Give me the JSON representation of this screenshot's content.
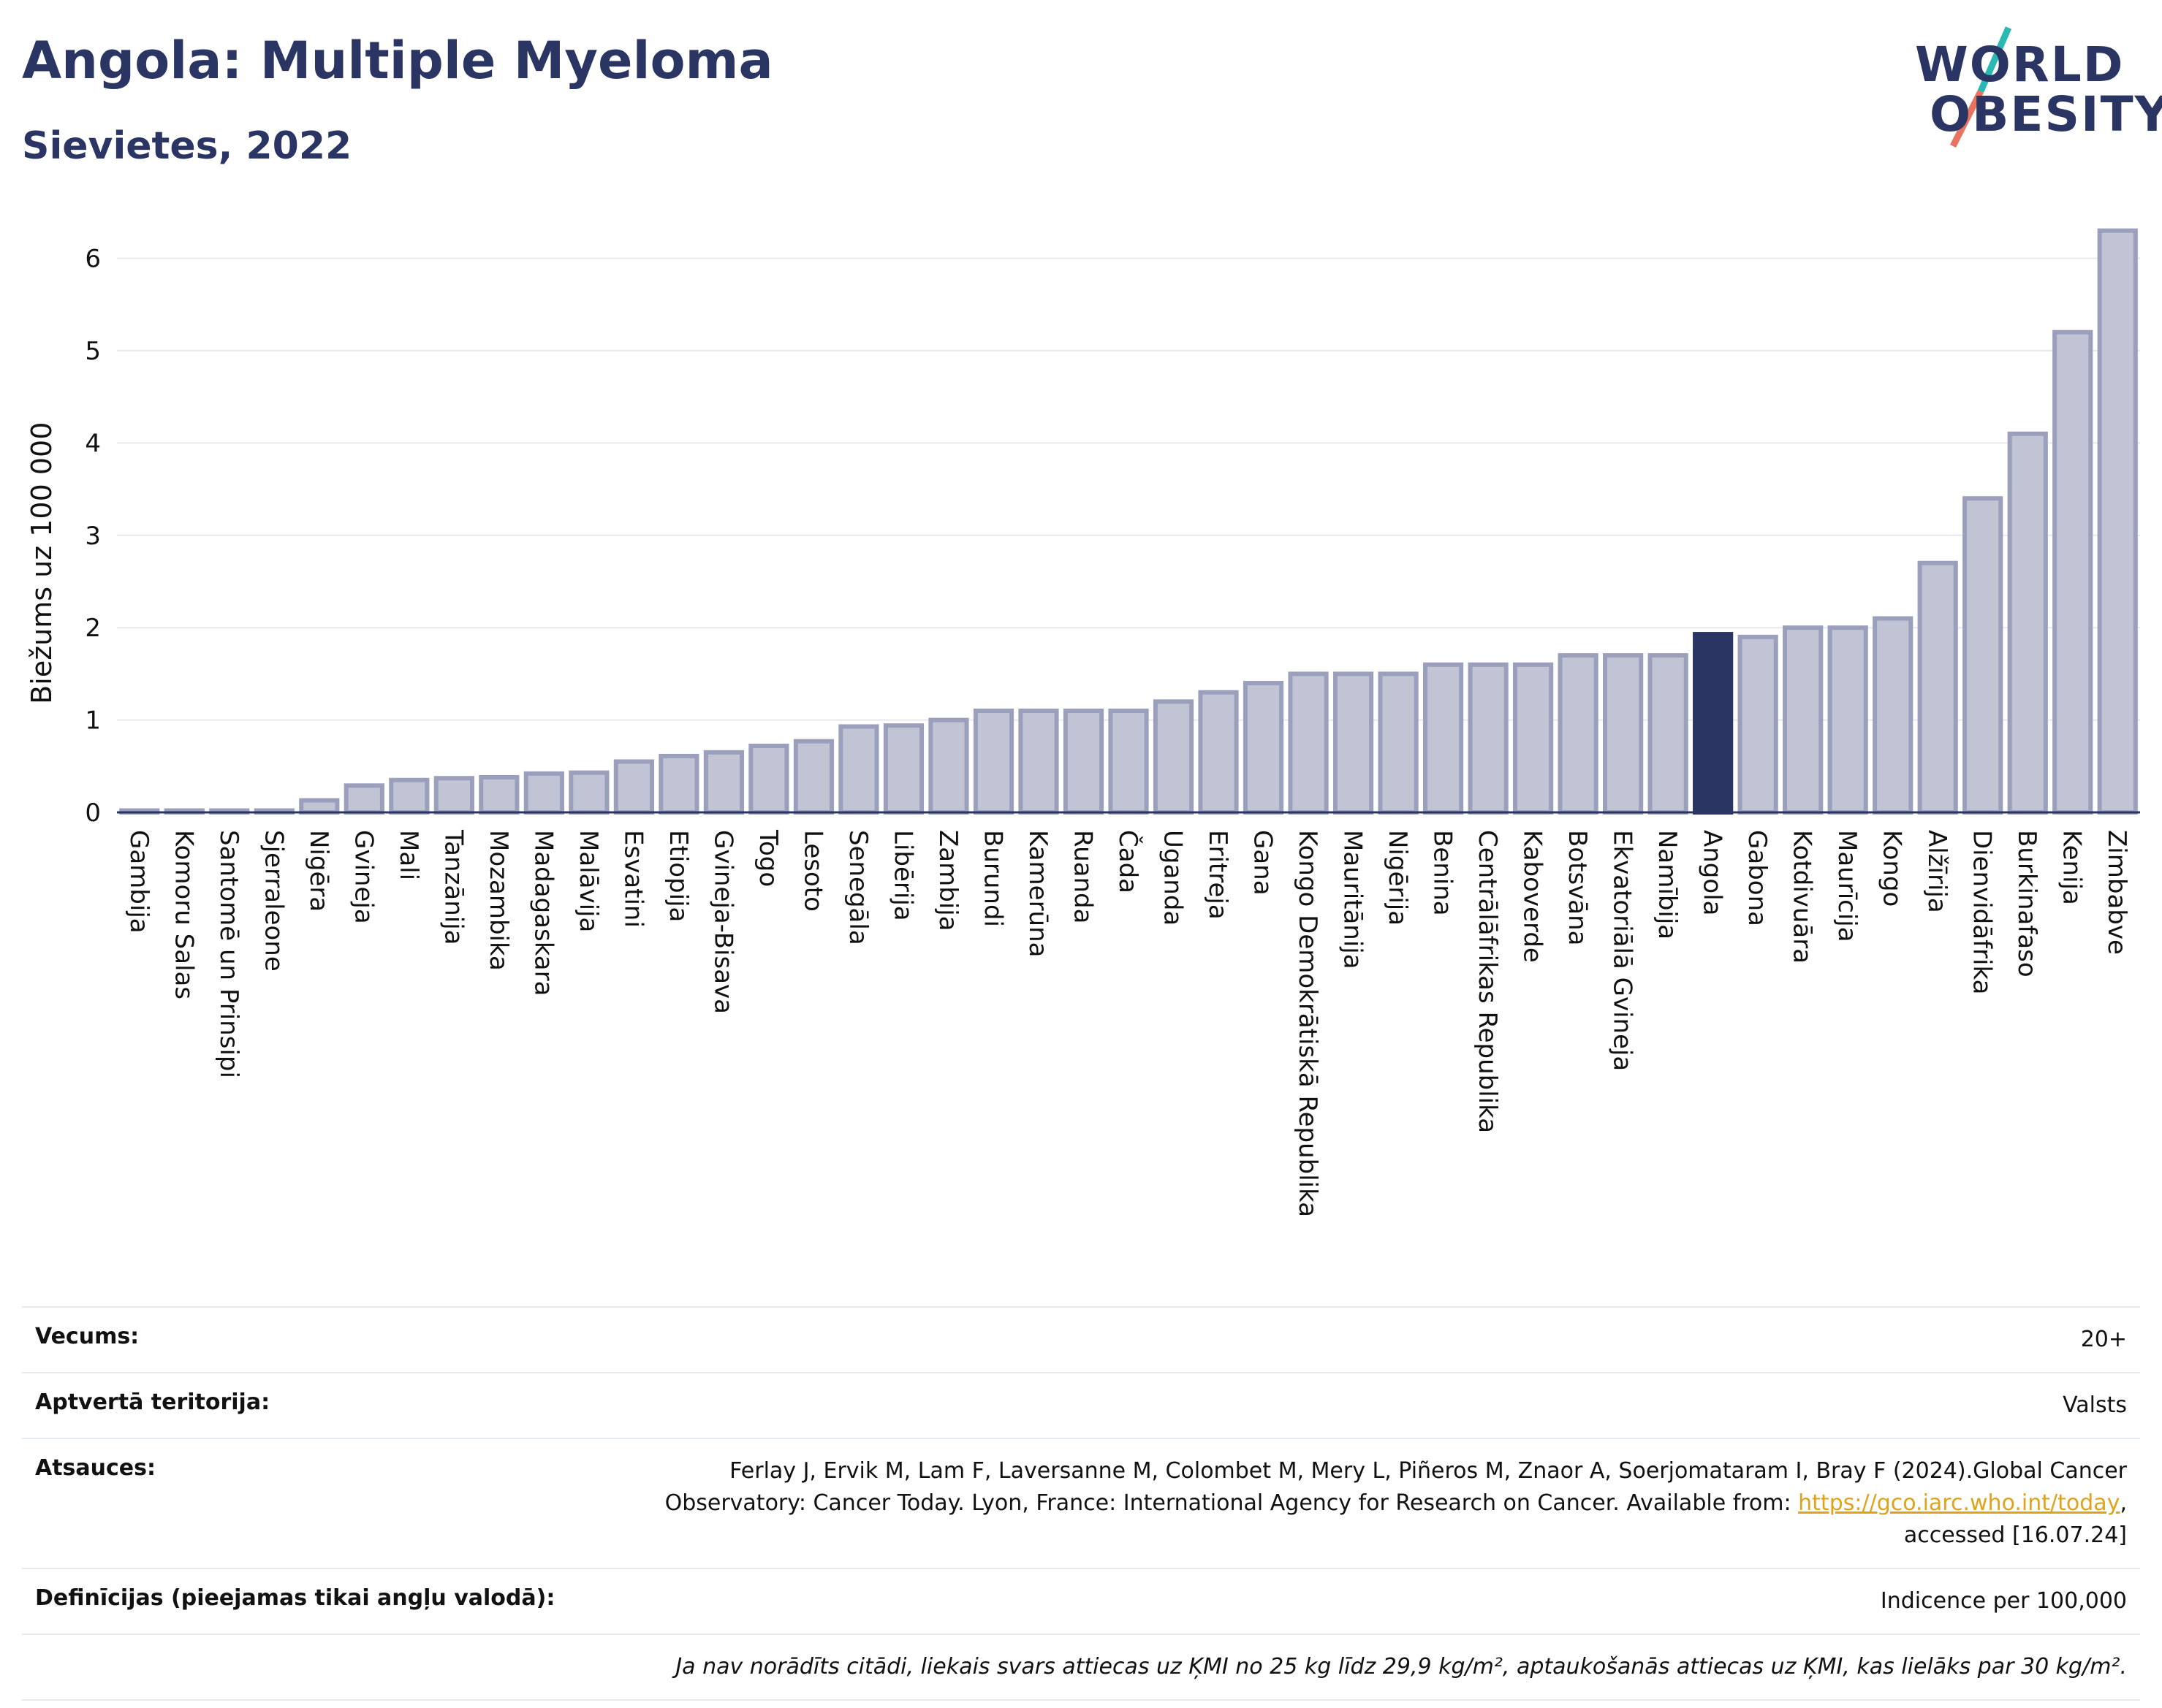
{
  "header": {
    "title": "Angola: Multiple Myeloma",
    "subtitle": "Sievietes, 2022"
  },
  "logo": {
    "line1": "WORLD",
    "line2": "OBESITY"
  },
  "chart_data": {
    "type": "bar",
    "ylabel": "Biežums uz 100 000",
    "xlabel": "",
    "ylim": [
      0,
      6.6
    ],
    "yticks": [
      0,
      1,
      2,
      3,
      4,
      5,
      6
    ],
    "grid": true,
    "highlight": "Angola",
    "colors": {
      "bar": "#c0c4d4",
      "bar_edge": "#9a9fbb",
      "highlight": "#2b3563"
    },
    "categories": [
      "Gambija",
      "Komoru Salas",
      "Santomē un Prinsipi",
      "Sjerraleone",
      "Nigēra",
      "Gvineja",
      "Mali",
      "Tanzānija",
      "Mozambika",
      "Madagaskara",
      "Malāvija",
      "Esvatini",
      "Etiopija",
      "Gvineja-Bisava",
      "Togo",
      "Lesoto",
      "Senegāla",
      "Libērija",
      "Zambija",
      "Burundi",
      "Kamerūna",
      "Ruanda",
      "Čada",
      "Uganda",
      "Eritreja",
      "Gana",
      "Kongo Demokrātiskā Republika",
      "Mauritānija",
      "Nigērija",
      "Benina",
      "Centrālāfrikas Republika",
      "Kaboverde",
      "Botsvāna",
      "Ekvatoriālā Gvineja",
      "Namībija",
      "Angola",
      "Gabona",
      "Kotdivuāra",
      "Maurīcija",
      "Kongo",
      "Alžīrija",
      "Dienvidāfrika",
      "Burkinafaso",
      "Kenija",
      "Zimbabve"
    ],
    "values": [
      0.02,
      0.02,
      0.02,
      0.02,
      0.13,
      0.29,
      0.35,
      0.37,
      0.38,
      0.42,
      0.43,
      0.55,
      0.61,
      0.65,
      0.72,
      0.77,
      0.93,
      0.94,
      1.0,
      1.1,
      1.1,
      1.1,
      1.1,
      1.2,
      1.3,
      1.4,
      1.5,
      1.5,
      1.5,
      1.6,
      1.6,
      1.6,
      1.7,
      1.7,
      1.7,
      1.93,
      1.9,
      2.0,
      2.0,
      2.1,
      2.7,
      3.4,
      4.1,
      5.2,
      6.3
    ]
  },
  "meta": {
    "rows": [
      {
        "key": "Vecums:",
        "value": "20+"
      },
      {
        "key": "Aptvertā teritorija:",
        "value": "Valsts"
      }
    ],
    "references": {
      "key": "Atsauces:",
      "line1": "Ferlay J, Ervik M, Lam F, Laversanne M, Colombet M, Mery L, Piñeros M, Znaor A, Soerjomataram I, Bray F (2024).Global Cancer",
      "line2": "Observatory: Cancer Today. Lyon, France: International Agency for Research on Cancer. Available from: ",
      "link": "https://gco.iarc.who.int/today",
      "line2_end": ",",
      "line3": "accessed [16.07.24]"
    },
    "definitions": {
      "key": "Definīcijas (pieejamas tikai angļu valodā):",
      "value": "Indicence per 100,000"
    },
    "note": "Ja nav norādīts citādi, liekais svars attiecas uz ĶMI no 25 kg līdz 29,9 kg/m², aptaukošanās attiecas uz ĶMI, kas lielāks par 30 kg/m²."
  }
}
